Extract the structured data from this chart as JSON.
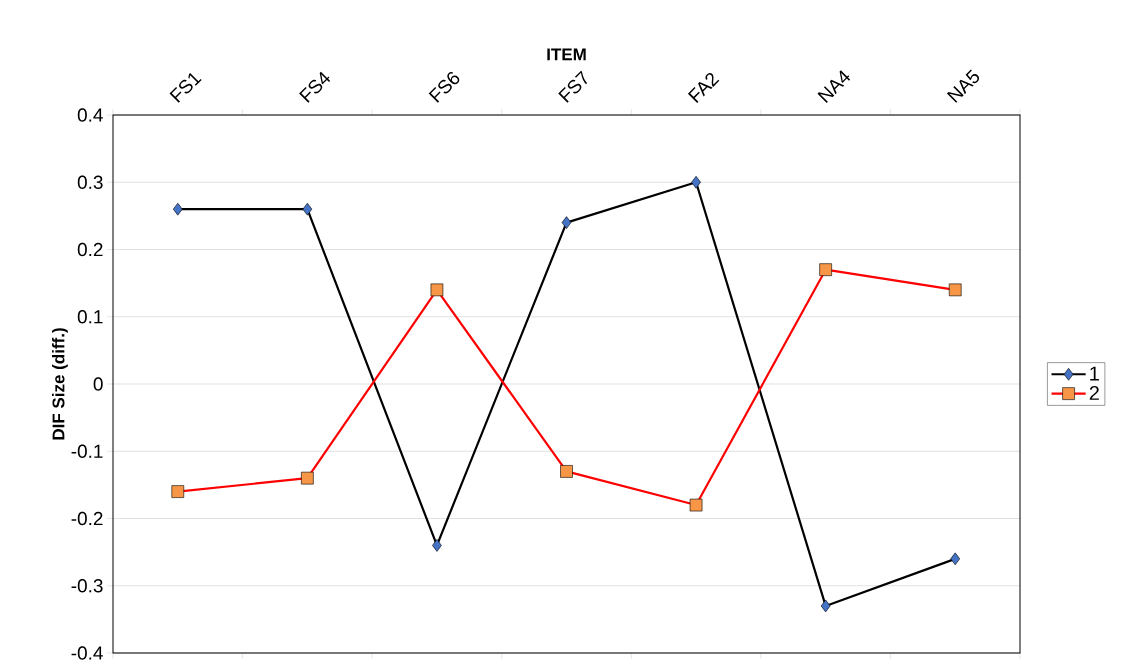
{
  "chart_data": {
    "type": "line",
    "xlabel": "ITEM",
    "ylabel": "DIF Size (diff.)",
    "categories": [
      "FS1",
      "FS4",
      "FS6",
      "FS7",
      "FA2",
      "NA4",
      "NA5"
    ],
    "series": [
      {
        "name": "1",
        "color": "#000000",
        "marker": "diamond",
        "values": [
          0.26,
          0.26,
          -0.24,
          0.24,
          0.3,
          -0.33,
          -0.26
        ]
      },
      {
        "name": "2",
        "color": "#ff0000",
        "marker": "square",
        "values": [
          -0.16,
          -0.14,
          0.14,
          -0.13,
          -0.18,
          0.17,
          0.14
        ]
      }
    ],
    "ylim": [
      -0.4,
      0.4
    ],
    "yticks": [
      -0.4,
      -0.3,
      -0.2,
      -0.1,
      0,
      0.1,
      0.2,
      0.3,
      0.4
    ],
    "grid": "y",
    "legend": "right",
    "line_style": "solid"
  }
}
